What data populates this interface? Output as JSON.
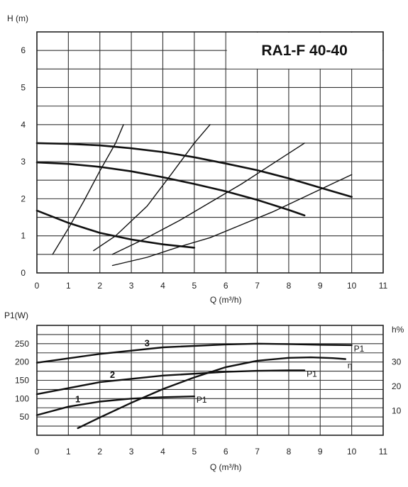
{
  "chart_data": [
    {
      "type": "line",
      "title": "RA1-F 40-40",
      "xlabel": "Q (m³/h)",
      "ylabel": "H (m)",
      "xlim": [
        0,
        11
      ],
      "ylim": [
        0,
        6.5
      ],
      "xticks": [
        0,
        1,
        2,
        3,
        4,
        5,
        6,
        7,
        8,
        9,
        10,
        11
      ],
      "yticks": [
        0,
        1,
        2,
        3,
        4,
        5,
        6
      ],
      "grid": true,
      "series": [
        {
          "values": [
            [
              0,
              3.5
            ],
            [
              1,
              3.48
            ],
            [
              2,
              3.44
            ],
            [
              3,
              3.36
            ],
            [
              4,
              3.26
            ],
            [
              5,
              3.12
            ],
            [
              6,
              2.95
            ],
            [
              7,
              2.77
            ],
            [
              8,
              2.55
            ],
            [
              9,
              2.3
            ],
            [
              10,
              2.05
            ]
          ]
        },
        {
          "values": [
            [
              0,
              2.98
            ],
            [
              1,
              2.94
            ],
            [
              2,
              2.86
            ],
            [
              3,
              2.74
            ],
            [
              4,
              2.58
            ],
            [
              5,
              2.4
            ],
            [
              6,
              2.2
            ],
            [
              7,
              1.97
            ],
            [
              8,
              1.7
            ],
            [
              8.5,
              1.55
            ]
          ]
        },
        {
          "values": [
            [
              0,
              1.68
            ],
            [
              1,
              1.35
            ],
            [
              2,
              1.08
            ],
            [
              3,
              0.9
            ],
            [
              4,
              0.77
            ],
            [
              5,
              0.68
            ]
          ]
        },
        {
          "values": [
            [
              0.5,
              0.5
            ],
            [
              1,
              1.2
            ],
            [
              1.5,
              1.95
            ],
            [
              2,
              2.75
            ],
            [
              2.5,
              3.5
            ],
            [
              2.75,
              4.0
            ]
          ]
        },
        {
          "values": [
            [
              1.8,
              0.6
            ],
            [
              2.5,
              1.0
            ],
            [
              3.5,
              1.8
            ],
            [
              4.3,
              2.7
            ],
            [
              5.0,
              3.5
            ],
            [
              5.5,
              4.0
            ]
          ]
        },
        {
          "values": [
            [
              2.4,
              0.5
            ],
            [
              3.5,
              0.95
            ],
            [
              4.5,
              1.4
            ],
            [
              5.5,
              1.9
            ],
            [
              6.5,
              2.4
            ],
            [
              7.5,
              2.95
            ],
            [
              8.5,
              3.5
            ]
          ]
        },
        {
          "values": [
            [
              2.4,
              0.2
            ],
            [
              3.5,
              0.42
            ],
            [
              4.5,
              0.7
            ],
            [
              5.5,
              0.95
            ],
            [
              6.5,
              1.3
            ],
            [
              7.5,
              1.65
            ],
            [
              8.5,
              2.05
            ],
            [
              9.5,
              2.45
            ],
            [
              10,
              2.65
            ]
          ]
        }
      ]
    },
    {
      "type": "line",
      "xlabel": "Q (m³/h)",
      "ylabel": "P1(W)",
      "y2label": "h%",
      "xlim": [
        0,
        11
      ],
      "ylim": [
        0,
        300
      ],
      "y2lim": [
        0,
        45
      ],
      "xticks": [
        0,
        1,
        2,
        3,
        4,
        5,
        6,
        7,
        8,
        9,
        10,
        11
      ],
      "yticks": [
        50,
        100,
        150,
        200,
        250
      ],
      "y2ticks": [
        10,
        20,
        30
      ],
      "grid": true,
      "series": [
        {
          "name": "P1",
          "label": "3",
          "values": [
            [
              0,
              198
            ],
            [
              2,
              222
            ],
            [
              4,
              240
            ],
            [
              6,
              248
            ],
            [
              7,
              250
            ],
            [
              8,
              249
            ],
            [
              9,
              247
            ],
            [
              10,
              246
            ]
          ]
        },
        {
          "name": "P1",
          "label": "2",
          "values": [
            [
              0,
              112
            ],
            [
              2,
              145
            ],
            [
              4,
              163
            ],
            [
              6,
              173
            ],
            [
              7,
              176
            ],
            [
              8,
              177
            ],
            [
              8.5,
              177
            ]
          ]
        },
        {
          "name": "P1",
          "label": "1",
          "values": [
            [
              0,
              55
            ],
            [
              1,
              78
            ],
            [
              2,
              92
            ],
            [
              3,
              100
            ],
            [
              4,
              104
            ],
            [
              5,
              106
            ]
          ]
        },
        {
          "name": "η",
          "axis": "right",
          "values": [
            [
              1.3,
              2.9
            ],
            [
              2,
              7.3
            ],
            [
              3,
              13.3
            ],
            [
              4,
              18.9
            ],
            [
              5,
              23.7
            ],
            [
              6,
              27.9
            ],
            [
              7,
              30.5
            ],
            [
              8,
              31.7
            ],
            [
              8.7,
              31.9
            ],
            [
              9.4,
              31.6
            ],
            [
              9.8,
              31.2
            ]
          ]
        }
      ]
    }
  ]
}
